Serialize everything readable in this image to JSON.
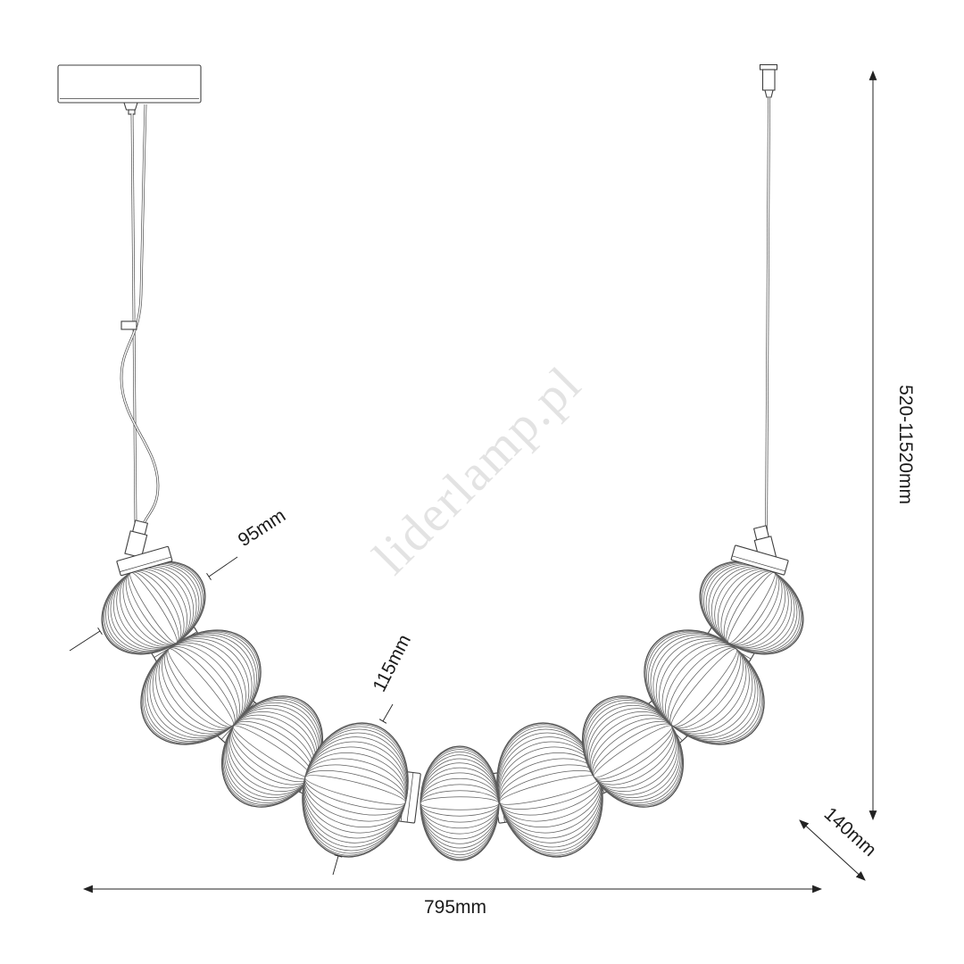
{
  "watermark": {
    "text": "liderlamp.pl",
    "color": "#e3e3e3"
  },
  "labels": {
    "globe_small_diameter": "95mm",
    "globe_large_diameter": "115mm",
    "suspension_height_range": "520-11520mm",
    "fixture_depth": "140mm",
    "fixture_width": "795mm"
  },
  "colors": {
    "line": "#3f3f3f",
    "rib": "#5f5f5f",
    "dimension": "#222222",
    "text": "#1b1b1b",
    "background": "#ffffff"
  }
}
